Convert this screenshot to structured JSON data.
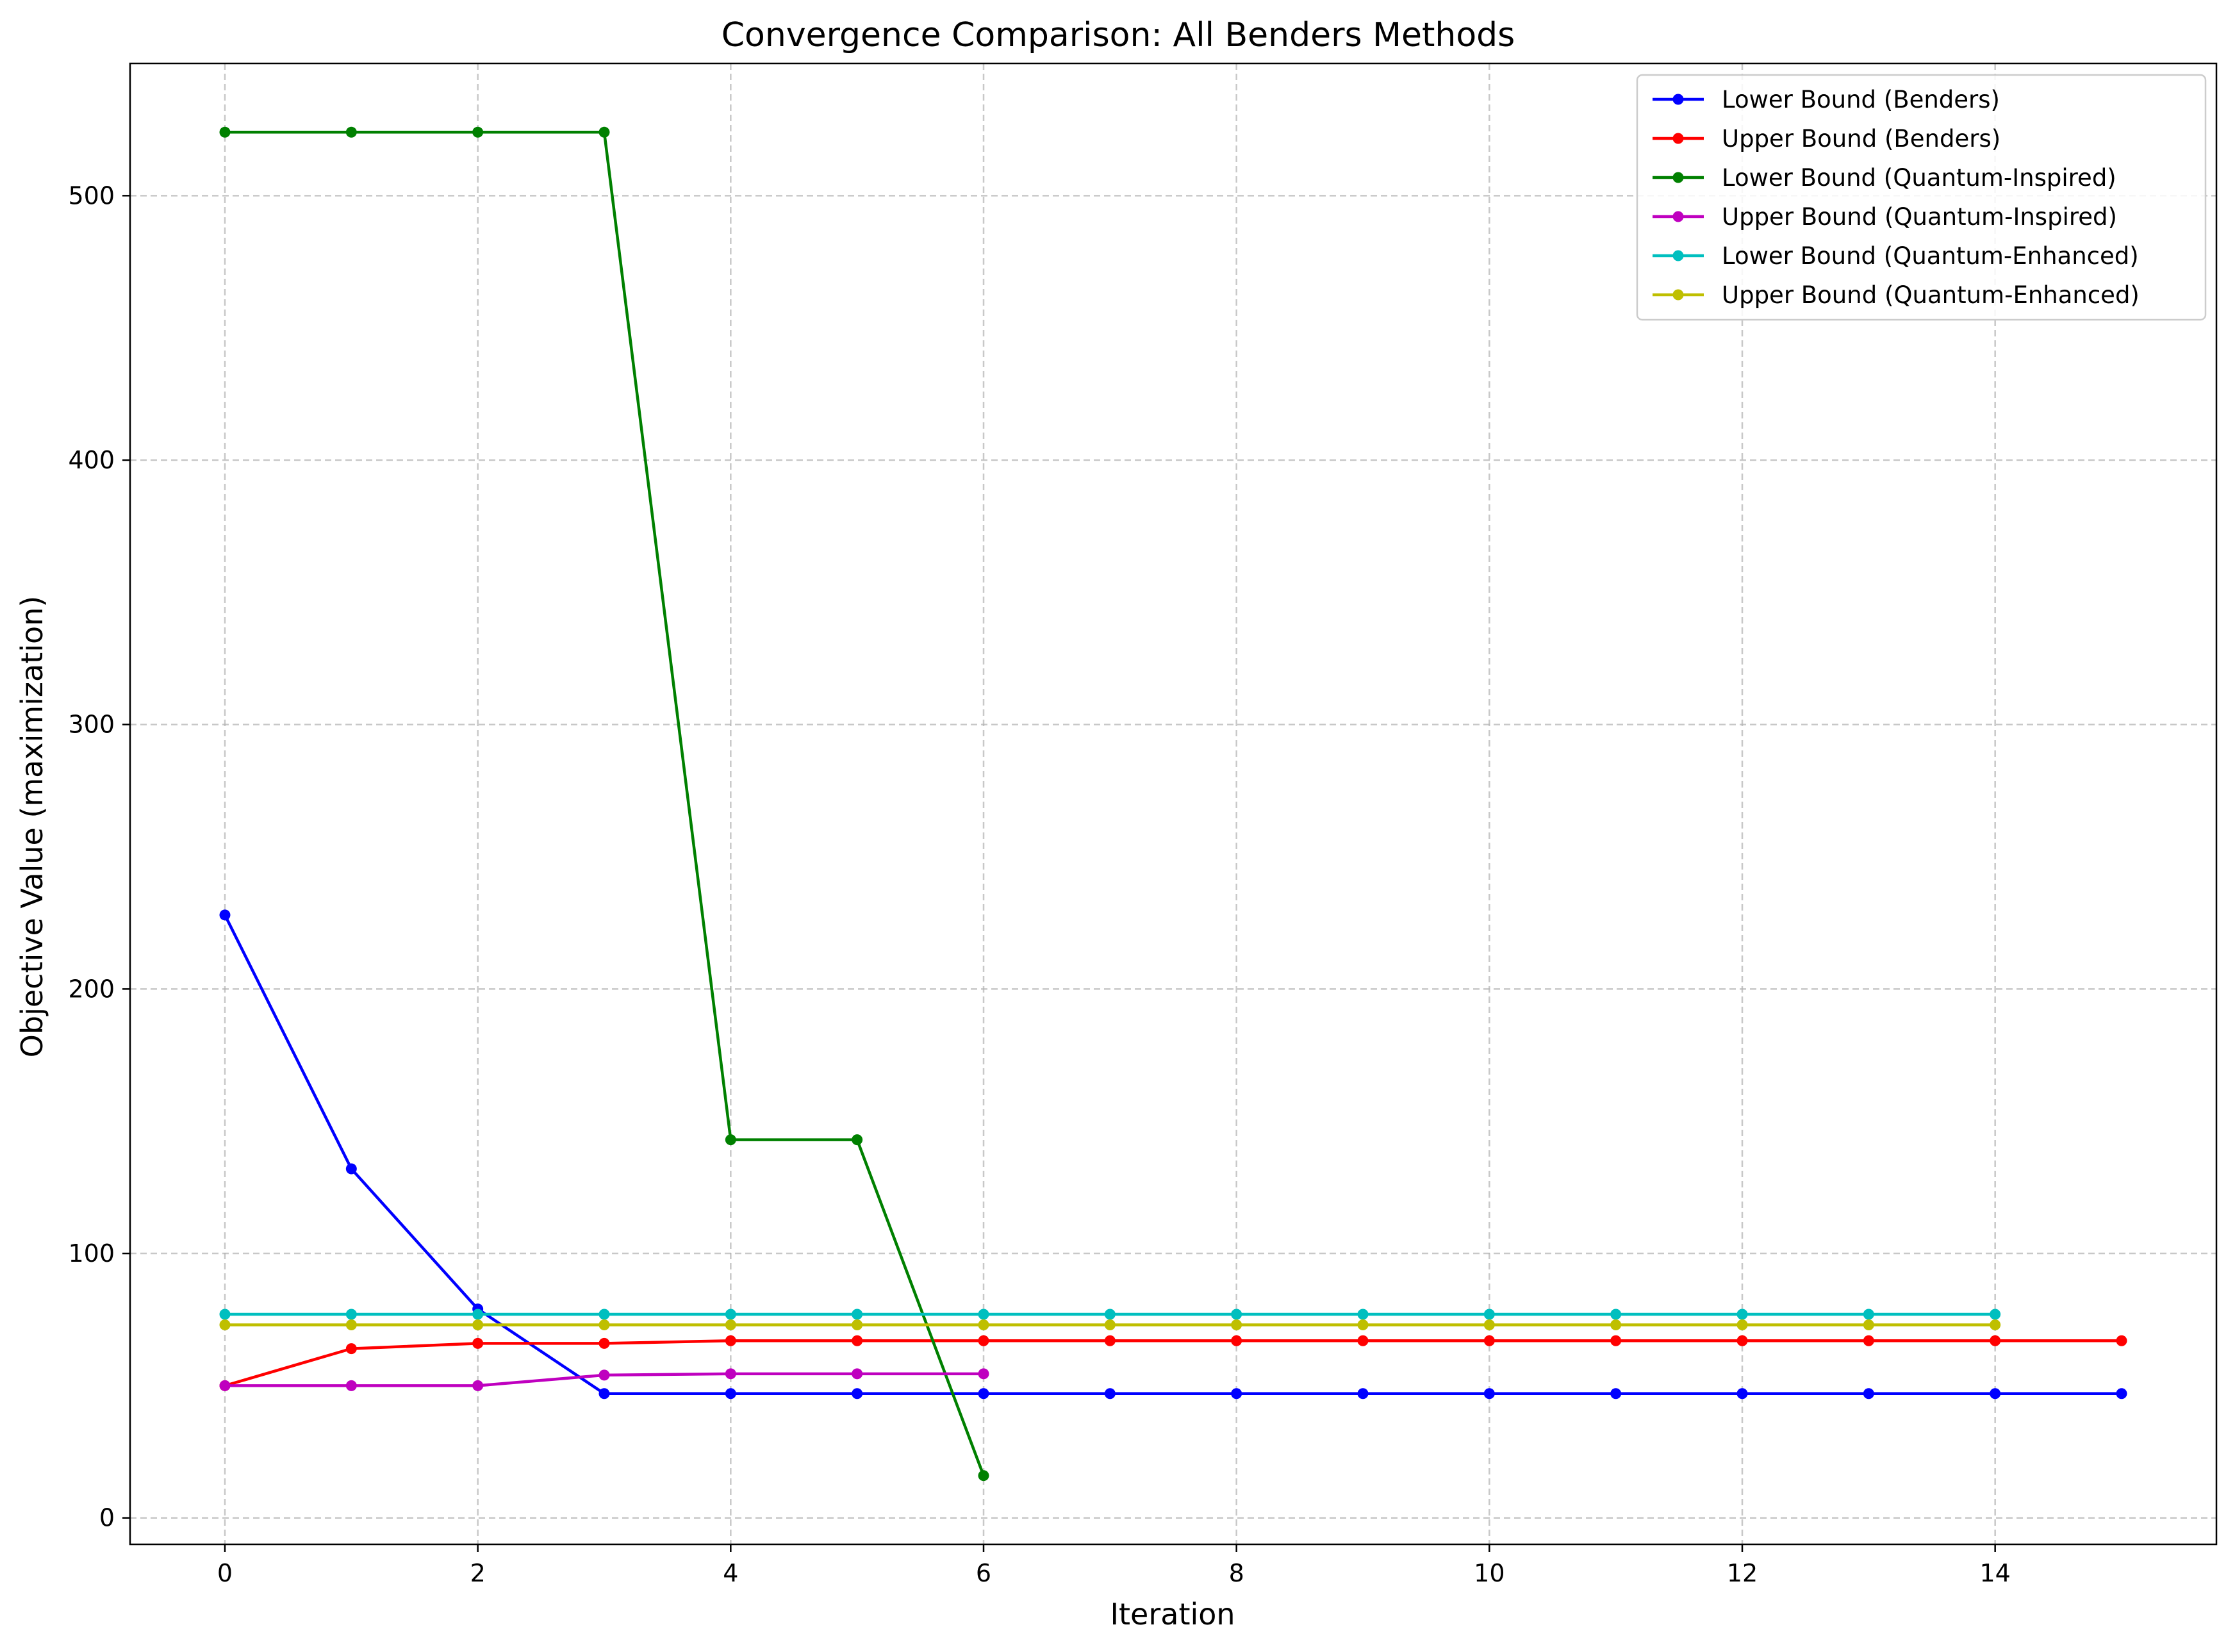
{
  "chart_data": {
    "type": "line",
    "title": "Convergence Comparison: All Benders Methods",
    "xlabel": "Iteration",
    "ylabel": "Objective Value (maximization)",
    "xlim": [
      -0.75,
      15.75
    ],
    "ylim": [
      -10,
      550
    ],
    "x_ticks": [
      0,
      2,
      4,
      6,
      8,
      10,
      12,
      14
    ],
    "y_ticks": [
      0,
      100,
      200,
      300,
      400,
      500
    ],
    "grid": true,
    "legend_position": "top-right",
    "series": [
      {
        "name": "Lower Bound (Benders)",
        "color": "#0000ff",
        "x": [
          0,
          1,
          2,
          3,
          4,
          5,
          6,
          7,
          8,
          9,
          10,
          11,
          12,
          13,
          14,
          15
        ],
        "values": [
          228,
          132,
          79,
          47,
          47,
          47,
          47,
          47,
          47,
          47,
          47,
          47,
          47,
          47,
          47,
          47
        ]
      },
      {
        "name": "Upper Bound (Benders)",
        "color": "#ff0000",
        "x": [
          0,
          1,
          2,
          3,
          4,
          5,
          6,
          7,
          8,
          9,
          10,
          11,
          12,
          13,
          14,
          15
        ],
        "values": [
          50,
          64,
          66,
          66,
          67,
          67,
          67,
          67,
          67,
          67,
          67,
          67,
          67,
          67,
          67,
          67
        ]
      },
      {
        "name": "Lower Bound (Quantum-Inspired)",
        "color": "#008000",
        "x": [
          0,
          1,
          2,
          3,
          4,
          5,
          6
        ],
        "values": [
          524,
          524,
          524,
          524,
          143,
          143,
          16
        ]
      },
      {
        "name": "Upper Bound (Quantum-Inspired)",
        "color": "#bf00bf",
        "x": [
          0,
          1,
          2,
          3,
          4,
          5,
          6
        ],
        "values": [
          50,
          50,
          50,
          54,
          54.5,
          54.5,
          54.5
        ]
      },
      {
        "name": "Lower Bound (Quantum-Enhanced)",
        "color": "#00bfbf",
        "x": [
          0,
          1,
          2,
          3,
          4,
          5,
          6,
          7,
          8,
          9,
          10,
          11,
          12,
          13,
          14
        ],
        "values": [
          77,
          77,
          77,
          77,
          77,
          77,
          77,
          77,
          77,
          77,
          77,
          77,
          77,
          77,
          77
        ]
      },
      {
        "name": "Upper Bound (Quantum-Enhanced)",
        "color": "#bfbf00",
        "x": [
          0,
          1,
          2,
          3,
          4,
          5,
          6,
          7,
          8,
          9,
          10,
          11,
          12,
          13,
          14
        ],
        "values": [
          73,
          73,
          73,
          73,
          73,
          73,
          73,
          73,
          73,
          73,
          73,
          73,
          73,
          73,
          73
        ]
      }
    ]
  }
}
